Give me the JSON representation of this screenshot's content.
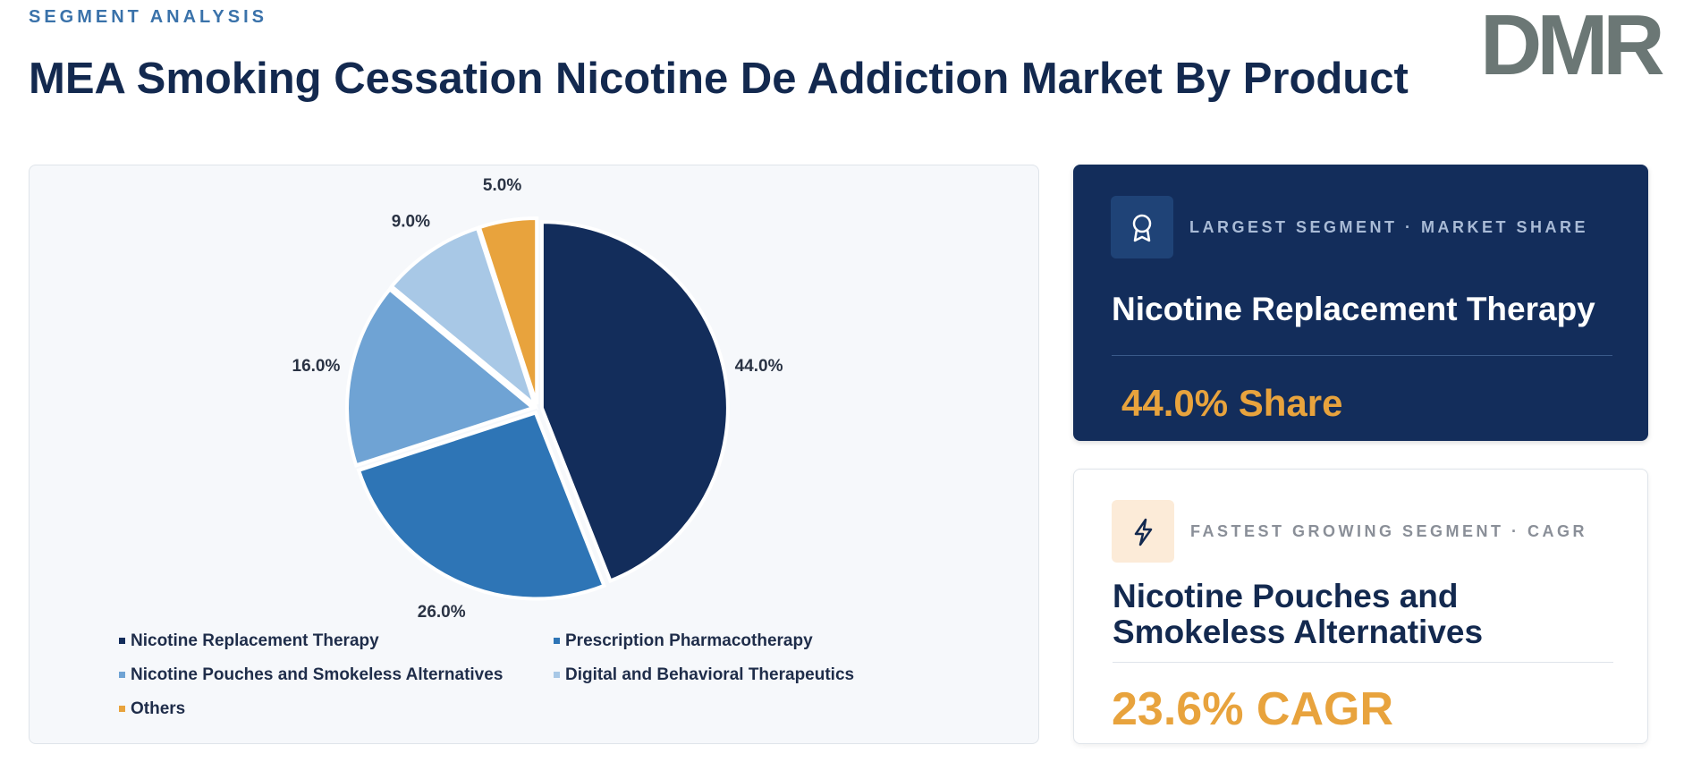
{
  "header": {
    "kicker": "SEGMENT ANALYSIS",
    "title": "MEA Smoking Cessation Nicotine De Addiction Market By Product",
    "logo": "DMR"
  },
  "chart_data": {
    "type": "pie",
    "categories": [
      "Nicotine Replacement Therapy",
      "Prescription Pharmacotherapy",
      "Nicotine Pouches and Smokeless Alternatives",
      "Digital and Behavioral Therapeutics",
      "Others"
    ],
    "values": [
      44.0,
      26.0,
      16.0,
      9.0,
      5.0
    ],
    "value_labels": [
      "44.0%",
      "26.0%",
      "16.0%",
      "9.0%",
      "5.0%"
    ],
    "colors": [
      "#132d5b",
      "#2e75b6",
      "#6fa3d4",
      "#a8c8e6",
      "#e8a33d"
    ]
  },
  "cards": [
    {
      "label": "LARGEST SEGMENT  ·  MARKET SHARE",
      "segment": "Nicotine Replacement Therapy",
      "metric": "44.0% Share"
    },
    {
      "label": "FASTEST GROWING SEGMENT  ·  CAGR",
      "segment": "Nicotine Pouches and Smokeless Alternatives",
      "metric": "23.6% CAGR"
    }
  ]
}
